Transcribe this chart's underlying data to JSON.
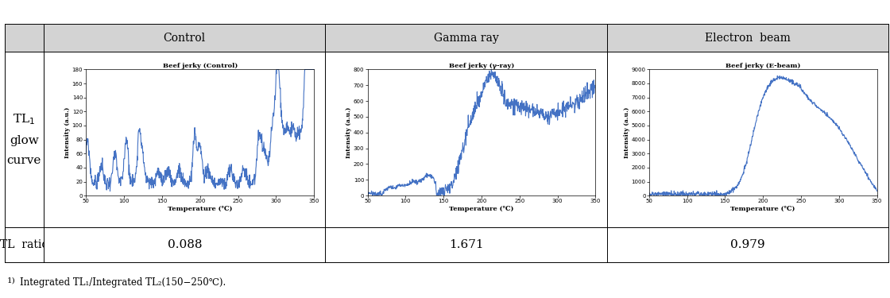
{
  "table_header_bg": "#d3d3d3",
  "header_labels": [
    "Control",
    "Gamma ray",
    "Electron  beam"
  ],
  "tl_ratios": [
    "0.088",
    "1.671",
    "0.979"
  ],
  "plot_titles": [
    "Beef jerky (Control)",
    "Beef jerky (γ-ray)",
    "Beef jerky (E-beam)"
  ],
  "xlabel": "Temperature (℃)",
  "ylabel": "Intensity (a.u.)",
  "xlim": [
    50,
    350
  ],
  "control_ylim": [
    0,
    180
  ],
  "gamma_ylim": [
    0,
    800
  ],
  "ebeam_ylim": [
    0,
    9000
  ],
  "control_yticks": [
    0,
    20,
    40,
    60,
    80,
    100,
    120,
    140,
    160,
    180
  ],
  "gamma_yticks": [
    0,
    100,
    200,
    300,
    400,
    500,
    600,
    700,
    800
  ],
  "ebeam_yticks": [
    0,
    1000,
    2000,
    3000,
    4000,
    5000,
    6000,
    7000,
    8000,
    9000
  ],
  "xticks": [
    50,
    100,
    150,
    200,
    250,
    300,
    350
  ],
  "line_color": "#4472c4",
  "line_width": 0.8,
  "footnote_super": "1)",
  "footnote_body": "Integrated TL₁/Integrated TL₂(150−250℃)."
}
